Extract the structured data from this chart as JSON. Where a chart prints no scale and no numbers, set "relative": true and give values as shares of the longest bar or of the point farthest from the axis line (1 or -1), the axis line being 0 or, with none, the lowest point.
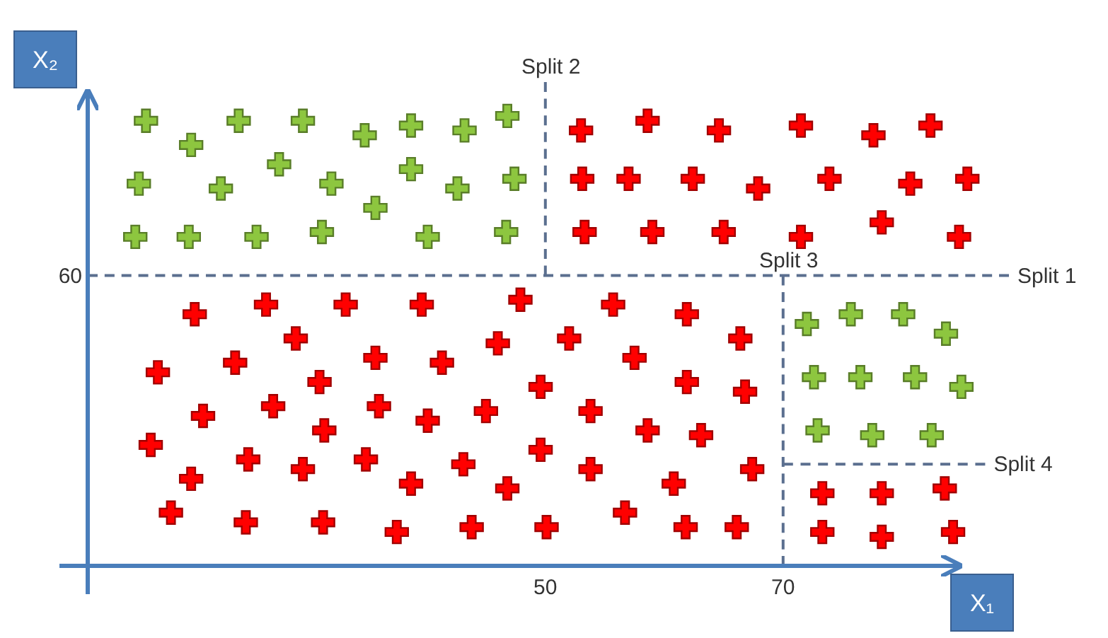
{
  "chart_data": {
    "type": "scatter",
    "xlabel": "X₁",
    "ylabel": "X₂",
    "xlim": [
      11.5,
      89
    ],
    "xticks": [
      50,
      70
    ],
    "relative": true,
    "grid": false,
    "marker": "cross",
    "series": [
      {
        "color": "#8dc63f",
        "x": [
          16.4,
          20.2,
          24.2,
          29.6,
          34.8,
          38.7,
          43.2,
          46.8,
          15.8,
          22.7,
          27.6,
          32.0,
          35.7,
          38.7,
          42.6,
          47.4,
          15.5,
          20.0,
          25.7,
          31.2,
          40.1,
          46.7,
          72.0,
          75.7,
          80.1,
          83.7,
          72.6,
          76.5,
          81.1,
          85.0,
          72.9,
          77.5,
          82.5
        ],
        "values": [
          0.92,
          0.87,
          0.92,
          0.92,
          0.89,
          0.91,
          0.9,
          0.93,
          0.79,
          0.78,
          0.83,
          0.79,
          0.74,
          0.82,
          0.78,
          0.8,
          0.68,
          0.68,
          0.68,
          0.69,
          0.68,
          0.69,
          0.5,
          0.52,
          0.52,
          0.48,
          0.39,
          0.39,
          0.39,
          0.37,
          0.28,
          0.27,
          0.27
        ]
      },
      {
        "color": "#ff0000",
        "x": [
          53.0,
          58.6,
          64.6,
          71.5,
          77.6,
          82.4,
          53.1,
          57.0,
          62.4,
          67.9,
          73.9,
          80.7,
          85.5,
          53.3,
          59.0,
          65.0,
          71.5,
          78.3,
          84.8,
          20.5,
          26.5,
          33.2,
          39.6,
          47.9,
          29.0,
          46.0,
          52.0,
          17.4,
          23.9,
          35.7,
          41.3,
          49.6,
          31.0,
          21.2,
          27.1,
          36.0,
          40.1,
          45.0,
          31.4,
          16.8,
          25.0,
          29.6,
          34.9,
          38.7,
          43.1,
          49.6,
          20.2,
          46.8,
          18.5,
          24.8,
          31.3,
          37.5,
          43.8,
          50.1,
          55.7,
          61.9,
          66.4,
          57.5,
          61.9,
          66.8,
          53.8,
          58.6,
          63.1,
          53.8,
          60.8,
          67.4,
          56.7,
          61.8,
          66.1,
          73.3,
          78.3,
          83.6,
          73.3,
          78.3,
          84.3
        ],
        "values": [
          0.9,
          0.92,
          0.9,
          0.91,
          0.89,
          0.91,
          0.8,
          0.8,
          0.8,
          0.78,
          0.8,
          0.79,
          0.8,
          0.69,
          0.69,
          0.69,
          0.68,
          0.71,
          0.68,
          0.52,
          0.54,
          0.54,
          0.54,
          0.55,
          0.47,
          0.46,
          0.47,
          0.4,
          0.42,
          0.43,
          0.42,
          0.37,
          0.38,
          0.31,
          0.33,
          0.33,
          0.3,
          0.32,
          0.28,
          0.25,
          0.22,
          0.2,
          0.22,
          0.17,
          0.21,
          0.24,
          0.18,
          0.16,
          0.11,
          0.09,
          0.09,
          0.07,
          0.08,
          0.08,
          0.54,
          0.52,
          0.47,
          0.43,
          0.38,
          0.36,
          0.32,
          0.28,
          0.27,
          0.2,
          0.17,
          0.2,
          0.11,
          0.08,
          0.08,
          0.15,
          0.15,
          0.16,
          0.07,
          0.06,
          0.07
        ]
      },
      {
        "type": "line",
        "color": "#5b6f8f",
        "line_style": "dashed",
        "marker": "none",
        "x": [
          50,
          50
        ],
        "values": [
          0.6,
          1
        ]
      },
      {
        "type": "line",
        "color": "#5b6f8f",
        "line_style": "dashed",
        "marker": "none",
        "x": [
          11.5,
          89
        ],
        "values": [
          0.6,
          0.6
        ]
      },
      {
        "type": "line",
        "color": "#5b6f8f",
        "line_style": "dashed",
        "marker": "none",
        "x": [
          70,
          70
        ],
        "values": [
          0.6,
          0
        ]
      },
      {
        "type": "line",
        "color": "#5b6f8f",
        "line_style": "dashed",
        "marker": "none",
        "x": [
          70,
          87
        ],
        "values": [
          0.21,
          0.21
        ]
      }
    ],
    "annotations": [
      {
        "text": "Split 2",
        "x": 50,
        "y": 1
      },
      {
        "text": "Split 3",
        "x": 70,
        "y": 0.6
      },
      {
        "text": "Split 1",
        "x": 89,
        "y": 0.6
      },
      {
        "text": "Split 4",
        "x": 87,
        "y": 0.21
      },
      {
        "text": "60",
        "x": 11.5,
        "y": 0.6
      }
    ]
  }
}
